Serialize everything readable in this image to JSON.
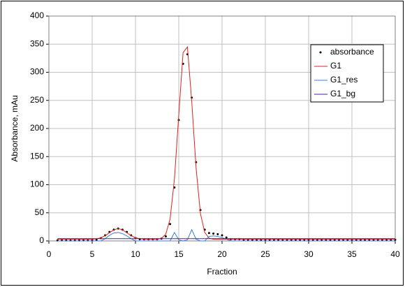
{
  "chart_data": {
    "type": "line",
    "x_label": "Fraction",
    "y_label": "Absorbance, mAu",
    "x": [
      1,
      1.5,
      2,
      2.5,
      3,
      3.5,
      4,
      4.5,
      5,
      5.5,
      6,
      6.5,
      7,
      7.5,
      8,
      8.5,
      9,
      9.5,
      10,
      10.5,
      11,
      11.5,
      12,
      12.5,
      13,
      13.5,
      14,
      14.5,
      15,
      15.5,
      16,
      16.5,
      17,
      17.5,
      18,
      18.5,
      19,
      19.5,
      20,
      20.5,
      21,
      21.5,
      22,
      22.5,
      23,
      23.5,
      24,
      24.5,
      25,
      25.5,
      26,
      26.5,
      27,
      27.5,
      28,
      28.5,
      29,
      29.5,
      30,
      30.5,
      31,
      31.5,
      32,
      32.5,
      33,
      33.5,
      34,
      34.5,
      35,
      35.5,
      36,
      36.5,
      37,
      37.5,
      38,
      38.5,
      39,
      39.5,
      40
    ],
    "series": [
      {
        "name": "absorbance",
        "style": "dots",
        "color": "#000000",
        "values": [
          1,
          1,
          1,
          1,
          1,
          1,
          1,
          1,
          1,
          2,
          5,
          10,
          16,
          20,
          22,
          20,
          16,
          10,
          5,
          3,
          3,
          3,
          3,
          3,
          4,
          8,
          30,
          95,
          215,
          315,
          332,
          255,
          140,
          55,
          20,
          14,
          13,
          12,
          10,
          6,
          3,
          3,
          3,
          2,
          2,
          2,
          2,
          2,
          2,
          2,
          2,
          2,
          2,
          2,
          2,
          2,
          2,
          2,
          2,
          2,
          2,
          2,
          2,
          2,
          2,
          2,
          2,
          2,
          2,
          2,
          2,
          2,
          2,
          2,
          2,
          2,
          2,
          2,
          2
        ]
      },
      {
        "name": "G1",
        "style": "line",
        "color": "#e02020",
        "values": [
          3,
          3,
          3,
          3,
          3,
          3,
          3,
          3,
          3,
          3.8,
          5.6,
          9.2,
          14.5,
          19.8,
          22,
          19.8,
          14.5,
          9.2,
          5.6,
          4,
          3,
          3,
          3,
          3,
          4.5,
          12,
          39,
          110,
          224,
          335,
          345,
          248,
          130,
          49,
          15,
          5,
          3,
          3,
          3,
          3,
          3,
          3,
          3,
          3,
          3,
          3,
          3,
          3,
          3,
          3,
          3,
          3,
          3,
          3,
          3,
          3,
          3,
          3,
          3,
          3,
          3,
          3,
          3,
          3,
          3,
          3,
          3,
          3,
          3,
          3,
          3,
          3,
          3,
          3,
          3,
          3,
          3,
          3,
          3
        ]
      },
      {
        "name": "G1_res",
        "style": "line",
        "color": "#3a7fd0",
        "values": [
          0,
          0,
          0,
          0,
          0,
          0,
          0,
          0,
          0,
          0,
          0,
          4,
          10,
          14,
          15,
          13,
          9,
          4,
          0,
          0,
          0,
          0,
          0,
          0,
          0,
          0,
          0,
          15,
          2,
          0,
          2,
          20,
          3,
          0,
          0,
          8,
          9,
          8,
          6,
          3,
          0,
          0,
          0,
          0,
          0,
          0,
          0,
          0,
          0,
          0,
          0,
          0,
          0,
          0,
          0,
          0,
          0,
          0,
          0,
          0,
          0,
          0,
          0,
          0,
          0,
          0,
          0,
          0,
          0,
          0,
          0,
          0,
          0,
          0,
          0,
          0,
          0,
          0,
          0
        ]
      },
      {
        "name": "G1_bg",
        "style": "line",
        "color": "#5b1a9e",
        "values": [
          4,
          4,
          4,
          4,
          4,
          4,
          4,
          4,
          4,
          4,
          4,
          4,
          4,
          4,
          4,
          4,
          4,
          4,
          4,
          4,
          4,
          4,
          4,
          4,
          4,
          4,
          4,
          4,
          4,
          4,
          4,
          4,
          4,
          4,
          4,
          4,
          4,
          4,
          4,
          4,
          4,
          4,
          4,
          4,
          4,
          4,
          4,
          4,
          4,
          4,
          4,
          4,
          4,
          4,
          4,
          4,
          4,
          4,
          4,
          4,
          4,
          4,
          4,
          4,
          4,
          4,
          4,
          4,
          4,
          4,
          4,
          4,
          4,
          4,
          4,
          4,
          4,
          4,
          4
        ]
      }
    ],
    "xlim": [
      0,
      40
    ],
    "xticks": [
      0,
      5,
      10,
      15,
      20,
      25,
      30,
      35,
      40
    ],
    "ylim": [
      0,
      400
    ],
    "yticks": [
      0,
      50,
      100,
      150,
      200,
      250,
      300,
      350,
      400
    ],
    "grid": true,
    "legend": "top-right"
  }
}
